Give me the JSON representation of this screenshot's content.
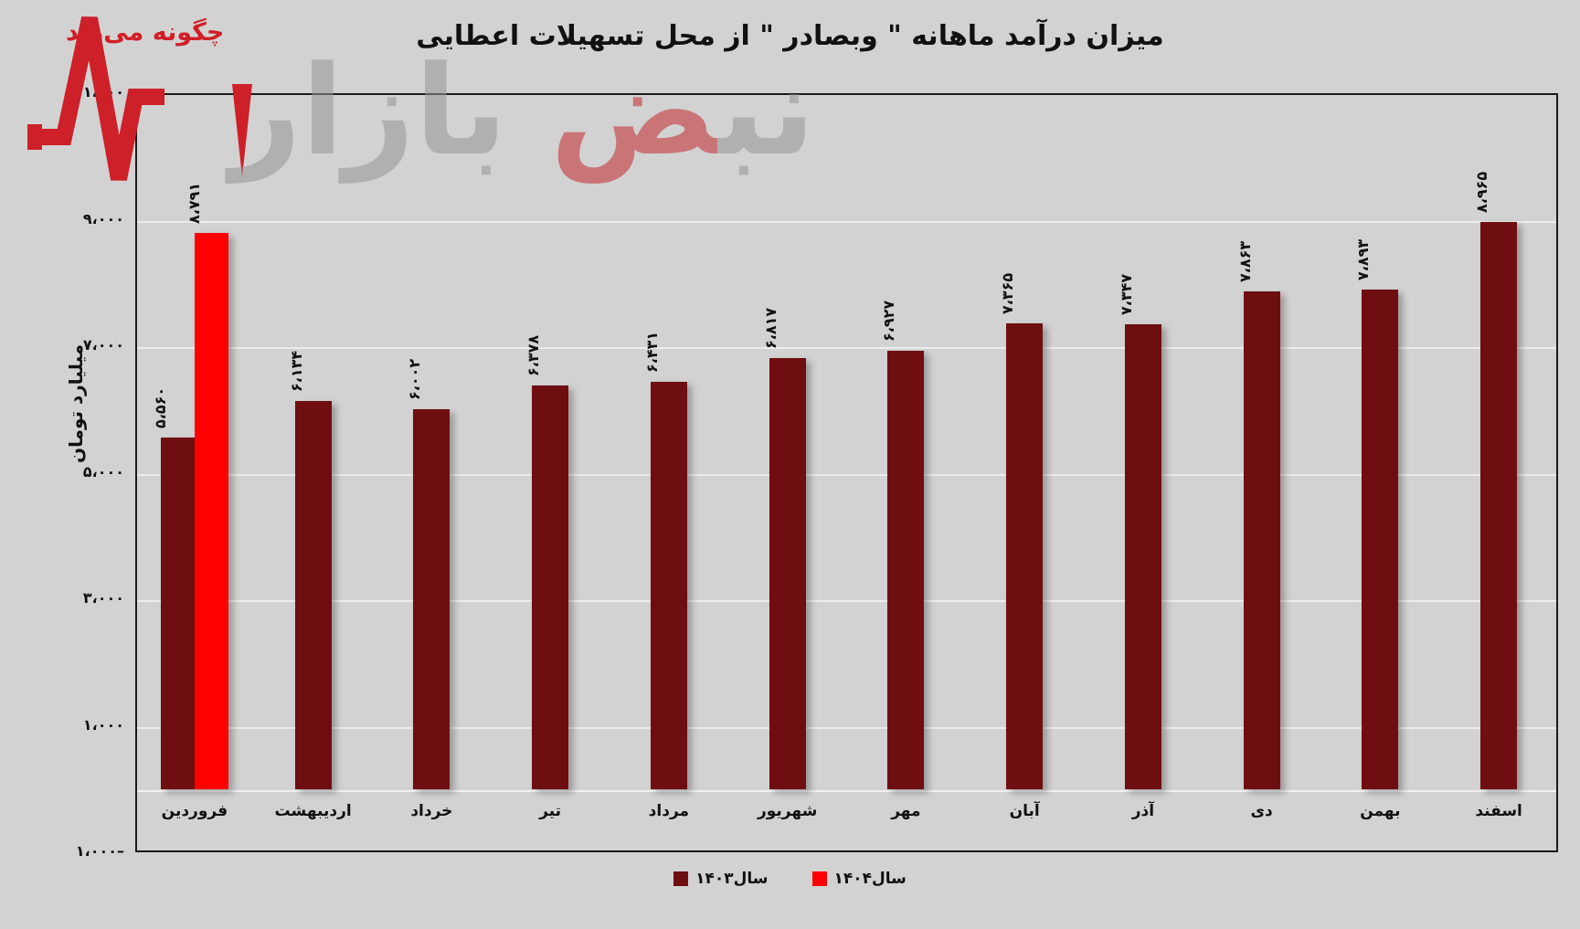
{
  "title": "میزان درآمد ماهانه \" وبصادر \" از محل تسهیلات اعطایی",
  "watermark": {
    "tagline": "چگونه می‌زند",
    "letters_right": "نب",
    "letters_red": "ض",
    "letters_left": " بازار"
  },
  "y_axis": {
    "title": "میلیارد تومان",
    "ticks": [
      "۱۱،۰۰۰",
      "۹،۰۰۰",
      "۷،۰۰۰",
      "۵،۰۰۰",
      "۳،۰۰۰",
      "۱،۰۰۰",
      "۱،۰۰۰–"
    ],
    "tick_values": [
      11000,
      9000,
      7000,
      5000,
      3000,
      1000,
      -1000
    ]
  },
  "legend": [
    {
      "label": "سال۱۴۰۳",
      "color": "#6e0e10"
    },
    {
      "label": "سال۱۴۰۴",
      "color": "#fe0000"
    }
  ],
  "chart_data": {
    "type": "bar",
    "title": "میزان درآمد ماهانه \" وبصادر \" از محل تسهیلات اعطایی",
    "ylabel": "میلیارد تومان",
    "ylim": [
      -1000,
      11000
    ],
    "grid": true,
    "legend_position": "bottom",
    "categories": [
      "فروردین",
      "اردیبهشت",
      "خرداد",
      "تیر",
      "مرداد",
      "شهریور",
      "مهر",
      "آبان",
      "آذر",
      "دی",
      "بهمن",
      "اسفند"
    ],
    "series": [
      {
        "name": "سال۱۴۰۳",
        "color": "#6e0e10",
        "values": [
          5560,
          6134,
          6002,
          6378,
          6431,
          6817,
          6927,
          7365,
          7347,
          7863,
          7893,
          8965
        ],
        "labels": [
          "۵،۵۶۰",
          "۶،۱۳۴",
          "۶،۰۰۲",
          "۶،۳۷۸",
          "۶،۴۳۱",
          "۶،۸۱۷",
          "۶،۹۲۷",
          "۷،۳۶۵",
          "۷،۳۴۷",
          "۷،۸۶۳",
          "۷،۸۹۳",
          "۸،۹۶۵"
        ]
      },
      {
        "name": "سال۱۴۰۴",
        "color": "#fe0000",
        "values": [
          8791,
          null,
          null,
          null,
          null,
          null,
          null,
          null,
          null,
          null,
          null,
          null
        ],
        "labels": [
          "۸،۷۹۱",
          null,
          null,
          null,
          null,
          null,
          null,
          null,
          null,
          null,
          null,
          null
        ]
      }
    ]
  }
}
